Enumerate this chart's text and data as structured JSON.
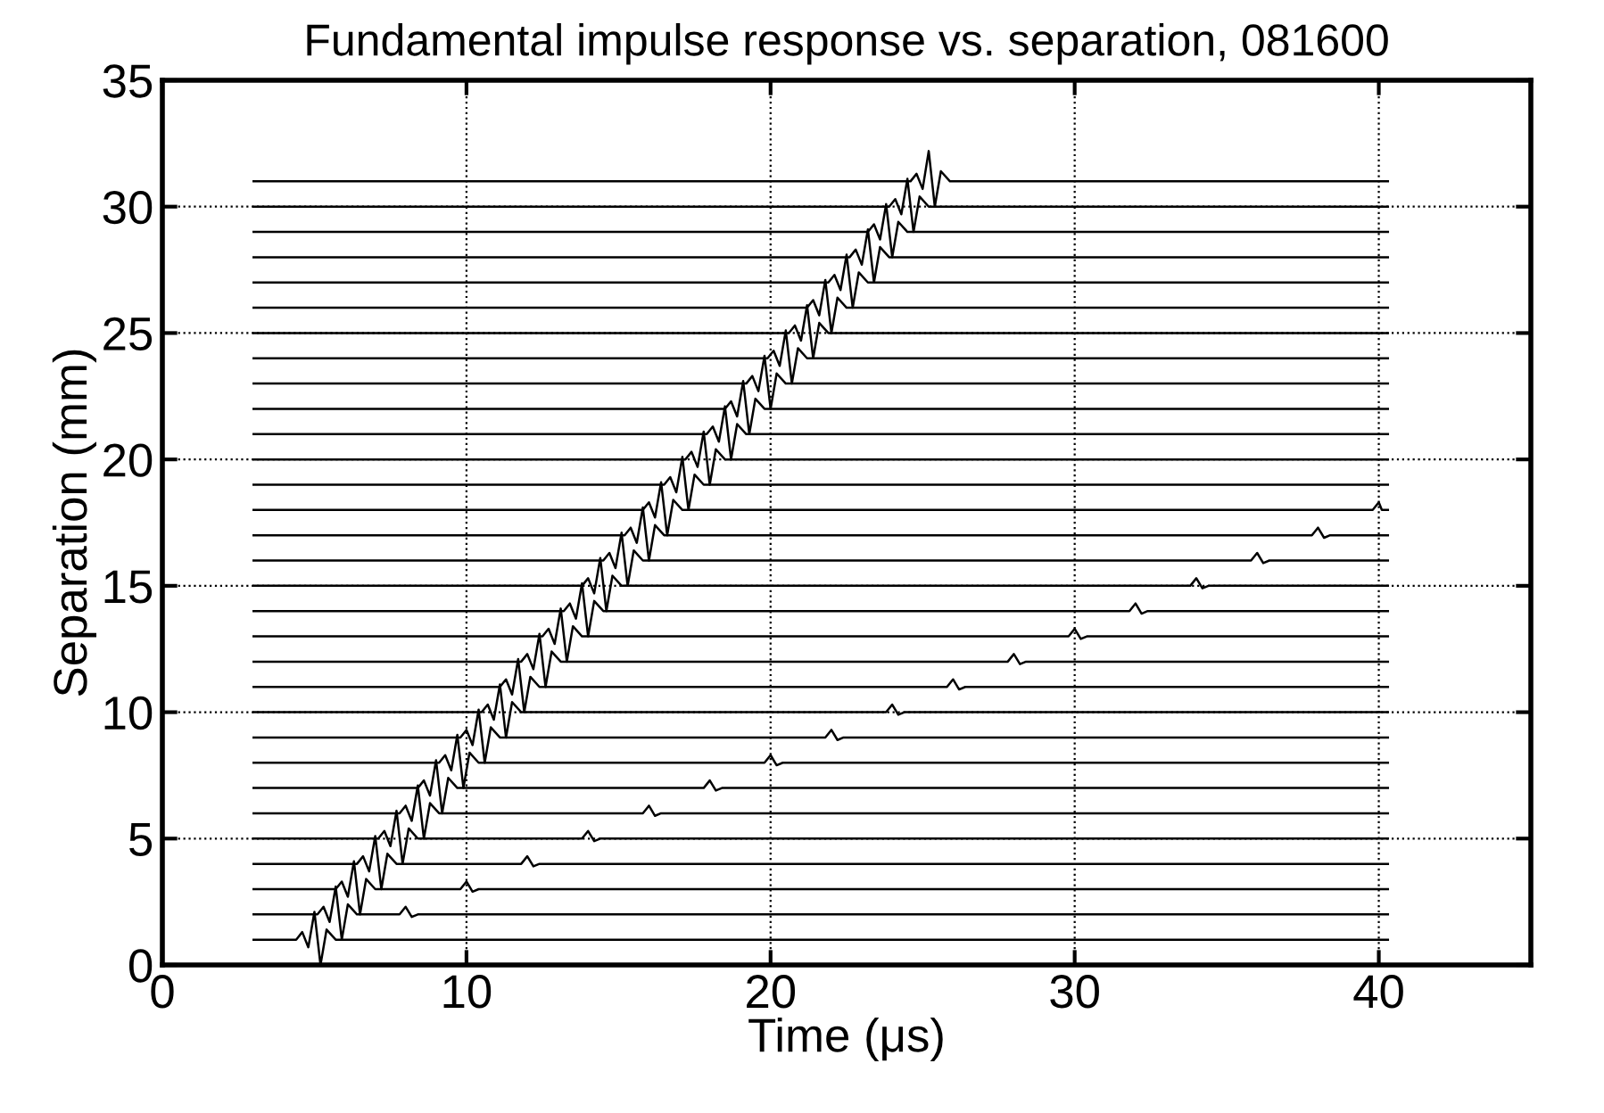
{
  "chart_data": {
    "type": "line",
    "title": "Fundamental impulse response vs. separation, 081600",
    "xlabel": "Time (μs)",
    "ylabel": "Separation (mm)",
    "xlim": [
      0,
      45
    ],
    "xticks": [
      0,
      10,
      20,
      30,
      40
    ],
    "ylim": [
      0,
      35
    ],
    "yticks": [
      0,
      5,
      10,
      15,
      20,
      25,
      30,
      35
    ],
    "grid": true,
    "series": [
      {
        "color": "#000000",
        "x": [
          3,
          4.4,
          4.6,
          4.8,
          5.0,
          5.2,
          5.4,
          5.7,
          40.3
        ],
        "values": [
          1,
          1,
          1.3,
          0.7,
          2.1,
          0,
          1.4,
          1,
          1
        ]
      },
      {
        "color": "#000000",
        "x": [
          3,
          5.1,
          5.3,
          5.5,
          5.7,
          5.9,
          6.1,
          6.4,
          7.8,
          8,
          8.2,
          8.4,
          40.3
        ],
        "values": [
          2,
          2,
          2.3,
          1.7,
          3.1,
          1,
          2.4,
          2,
          2,
          2.3,
          1.9,
          2,
          2
        ]
      },
      {
        "color": "#000000",
        "x": [
          3,
          5.7,
          5.9,
          6.1,
          6.3,
          6.5,
          6.7,
          7.0,
          9.8,
          10,
          10.2,
          10.4,
          40.3
        ],
        "values": [
          3,
          3,
          3.3,
          2.7,
          4.1,
          2,
          3.4,
          3,
          3,
          3.3,
          2.9,
          3,
          3
        ]
      },
      {
        "color": "#000000",
        "x": [
          3,
          6.4,
          6.6,
          6.8,
          7.0,
          7.2,
          7.4,
          7.7,
          11.8,
          12,
          12.2,
          12.4,
          40.3
        ],
        "values": [
          4,
          4,
          4.3,
          3.7,
          5.1,
          3,
          4.4,
          4,
          4,
          4.3,
          3.9,
          4,
          4
        ]
      },
      {
        "color": "#000000",
        "x": [
          3,
          7.1,
          7.3,
          7.5,
          7.7,
          7.9,
          8.1,
          8.4,
          13.8,
          14,
          14.2,
          14.4,
          40.3
        ],
        "values": [
          5,
          5,
          5.3,
          4.7,
          6.1,
          4,
          5.4,
          5,
          5,
          5.3,
          4.9,
          5,
          5
        ]
      },
      {
        "color": "#000000",
        "x": [
          3,
          7.8,
          8.0,
          8.2,
          8.4,
          8.6,
          8.8,
          9.1,
          15.8,
          16,
          16.2,
          16.4,
          40.3
        ],
        "values": [
          6,
          6,
          6.3,
          5.7,
          7.1,
          5,
          6.4,
          6,
          6,
          6.3,
          5.9,
          6,
          6
        ]
      },
      {
        "color": "#000000",
        "x": [
          3,
          8.4,
          8.6,
          8.8,
          9.0,
          9.2,
          9.4,
          9.7,
          17.8,
          18,
          18.2,
          18.4,
          40.3
        ],
        "values": [
          7,
          7,
          7.3,
          6.7,
          8.1,
          6,
          7.4,
          7,
          7,
          7.3,
          6.9,
          7,
          7
        ]
      },
      {
        "color": "#000000",
        "x": [
          3,
          9.1,
          9.3,
          9.5,
          9.7,
          9.9,
          10.1,
          10.4,
          19.8,
          20,
          20.2,
          20.4,
          40.3
        ],
        "values": [
          8,
          8,
          8.3,
          7.7,
          9.1,
          7,
          8.4,
          8,
          8,
          8.3,
          7.9,
          8,
          8
        ]
      },
      {
        "color": "#000000",
        "x": [
          3,
          9.8,
          10.0,
          10.2,
          10.4,
          10.6,
          10.8,
          11.1,
          21.8,
          22,
          22.2,
          22.4,
          40.3
        ],
        "values": [
          9,
          9,
          9.3,
          8.7,
          10.1,
          8,
          9.4,
          9,
          9,
          9.3,
          8.9,
          9,
          9
        ]
      },
      {
        "color": "#000000",
        "x": [
          3,
          10.5,
          10.7,
          10.9,
          11.1,
          11.3,
          11.5,
          11.8,
          23.8,
          24,
          24.2,
          24.4,
          40.3
        ],
        "values": [
          10,
          10,
          10.3,
          9.7,
          11.1,
          9,
          10.4,
          10,
          10,
          10.3,
          9.9,
          10,
          10
        ]
      },
      {
        "color": "#000000",
        "x": [
          3,
          11.1,
          11.3,
          11.5,
          11.7,
          11.9,
          12.1,
          12.4,
          25.8,
          26,
          26.2,
          26.4,
          40.3
        ],
        "values": [
          11,
          11,
          11.3,
          10.7,
          12.1,
          10,
          11.4,
          11,
          11,
          11.3,
          10.9,
          11,
          11
        ]
      },
      {
        "color": "#000000",
        "x": [
          3,
          11.8,
          12.0,
          12.2,
          12.4,
          12.6,
          12.8,
          13.1,
          27.8,
          28,
          28.2,
          28.4,
          40.3
        ],
        "values": [
          12,
          12,
          12.3,
          11.7,
          13.1,
          11,
          12.4,
          12,
          12,
          12.3,
          11.9,
          12,
          12
        ]
      },
      {
        "color": "#000000",
        "x": [
          3,
          12.5,
          12.7,
          12.9,
          13.1,
          13.3,
          13.5,
          13.8,
          29.8,
          30,
          30.2,
          30.4,
          40.3
        ],
        "values": [
          13,
          13,
          13.3,
          12.7,
          14.1,
          12,
          13.4,
          13,
          13,
          13.3,
          12.9,
          13,
          13
        ]
      },
      {
        "color": "#000000",
        "x": [
          3,
          13.2,
          13.4,
          13.6,
          13.8,
          14.0,
          14.2,
          14.5,
          31.8,
          32,
          32.2,
          32.4,
          40.3
        ],
        "values": [
          14,
          14,
          14.3,
          13.7,
          15.1,
          13,
          14.4,
          14,
          14,
          14.3,
          13.9,
          14,
          14
        ]
      },
      {
        "color": "#000000",
        "x": [
          3,
          13.8,
          14.0,
          14.2,
          14.4,
          14.6,
          14.8,
          15.1,
          33.8,
          34,
          34.2,
          34.4,
          40.3
        ],
        "values": [
          15,
          15,
          15.3,
          14.7,
          16.1,
          14,
          15.4,
          15,
          15,
          15.3,
          14.9,
          15,
          15
        ]
      },
      {
        "color": "#000000",
        "x": [
          3,
          14.5,
          14.7,
          14.9,
          15.1,
          15.3,
          15.5,
          15.8,
          35.8,
          36,
          36.2,
          36.4,
          40.3
        ],
        "values": [
          16,
          16,
          16.3,
          15.7,
          17.1,
          15,
          16.4,
          16,
          16,
          16.3,
          15.9,
          16,
          16
        ]
      },
      {
        "color": "#000000",
        "x": [
          3,
          15.2,
          15.4,
          15.6,
          15.8,
          16.0,
          16.2,
          16.5,
          37.8,
          38,
          38.2,
          38.4,
          40.3
        ],
        "values": [
          17,
          17,
          17.3,
          16.7,
          18.1,
          16,
          17.4,
          17,
          17,
          17.3,
          16.9,
          17,
          17
        ]
      },
      {
        "color": "#000000",
        "x": [
          3,
          15.8,
          16.0,
          16.2,
          16.4,
          16.6,
          16.8,
          17.1,
          39.8,
          40,
          40.1,
          40.3
        ],
        "values": [
          18,
          18,
          18.3,
          17.7,
          19.1,
          17,
          18.4,
          18,
          18,
          18.3,
          18,
          18
        ]
      },
      {
        "color": "#000000",
        "x": [
          3,
          16.5,
          16.7,
          16.9,
          17.1,
          17.3,
          17.5,
          17.8,
          40.3
        ],
        "values": [
          19,
          19,
          19.3,
          18.7,
          20.1,
          18,
          19.4,
          19,
          19
        ]
      },
      {
        "color": "#000000",
        "x": [
          3,
          17.2,
          17.4,
          17.6,
          17.8,
          18.0,
          18.2,
          18.5,
          40.3
        ],
        "values": [
          20,
          20,
          20.3,
          19.7,
          21.1,
          19,
          20.4,
          20,
          20
        ]
      },
      {
        "color": "#000000",
        "x": [
          3,
          17.9,
          18.1,
          18.3,
          18.5,
          18.7,
          18.9,
          19.2,
          40.3
        ],
        "values": [
          21,
          21,
          21.3,
          20.7,
          22.1,
          20,
          21.4,
          21,
          21
        ]
      },
      {
        "color": "#000000",
        "x": [
          3,
          18.5,
          18.7,
          18.9,
          19.1,
          19.3,
          19.5,
          19.8,
          40.3
        ],
        "values": [
          22,
          22,
          22.3,
          21.7,
          23.1,
          21,
          22.4,
          22,
          22
        ]
      },
      {
        "color": "#000000",
        "x": [
          3,
          19.2,
          19.4,
          19.6,
          19.8,
          20.0,
          20.2,
          20.5,
          40.3
        ],
        "values": [
          23,
          23,
          23.3,
          22.7,
          24.1,
          22,
          23.4,
          23,
          23
        ]
      },
      {
        "color": "#000000",
        "x": [
          3,
          19.9,
          20.1,
          20.3,
          20.5,
          20.7,
          20.9,
          21.2,
          40.3
        ],
        "values": [
          24,
          24,
          24.3,
          23.7,
          25.1,
          23,
          24.4,
          24,
          24
        ]
      },
      {
        "color": "#000000",
        "x": [
          3,
          20.6,
          20.8,
          21.0,
          21.2,
          21.4,
          21.6,
          21.9,
          40.3
        ],
        "values": [
          25,
          25,
          25.3,
          24.7,
          26.1,
          24,
          25.4,
          25,
          25
        ]
      },
      {
        "color": "#000000",
        "x": [
          3,
          21.2,
          21.4,
          21.6,
          21.8,
          22.0,
          22.2,
          22.5,
          40.3
        ],
        "values": [
          26,
          26,
          26.3,
          25.7,
          27.1,
          25,
          26.4,
          26,
          26
        ]
      },
      {
        "color": "#000000",
        "x": [
          3,
          21.9,
          22.1,
          22.3,
          22.5,
          22.7,
          22.9,
          23.2,
          40.3
        ],
        "values": [
          27,
          27,
          27.3,
          26.7,
          28.1,
          26,
          27.4,
          27,
          27
        ]
      },
      {
        "color": "#000000",
        "x": [
          3,
          22.6,
          22.8,
          23.0,
          23.2,
          23.4,
          23.6,
          23.9,
          40.3
        ],
        "values": [
          28,
          28,
          28.3,
          27.7,
          29.1,
          27,
          28.4,
          28,
          28
        ]
      },
      {
        "color": "#000000",
        "x": [
          3,
          23.2,
          23.4,
          23.6,
          23.8,
          24.0,
          24.2,
          24.5,
          40.3
        ],
        "values": [
          29,
          29,
          29.3,
          28.7,
          30.1,
          28,
          29.4,
          29,
          29
        ]
      },
      {
        "color": "#000000",
        "x": [
          3,
          23.9,
          24.1,
          24.3,
          24.5,
          24.7,
          24.9,
          25.2,
          40.3
        ],
        "values": [
          30,
          30,
          30.3,
          29.7,
          31.1,
          29,
          30.4,
          30,
          30
        ]
      },
      {
        "color": "#000000",
        "x": [
          3,
          24.6,
          24.8,
          25.0,
          25.2,
          25.4,
          25.6,
          25.9,
          40.3
        ],
        "values": [
          31,
          31,
          31.3,
          30.7,
          32.2,
          30,
          31.4,
          31,
          31
        ]
      }
    ]
  }
}
